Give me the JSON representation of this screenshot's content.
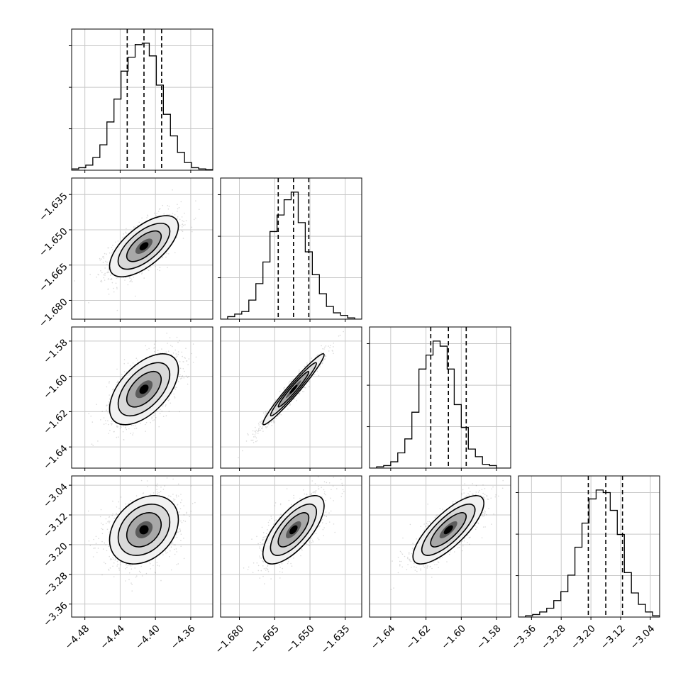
{
  "figure": {
    "type": "corner",
    "n_params": 4,
    "colors": {
      "hist": "#000000",
      "dashed": "#000000",
      "grid": "#c8c8c8",
      "scatter": "#555555",
      "contour": "#000000",
      "fill_dark": "#000000",
      "fill_light": "#bcbcbc"
    },
    "quantiles": [
      0.16,
      0.5,
      0.84
    ],
    "grid": true
  },
  "chart_data": {
    "type": "corner",
    "params": [
      {
        "range": [
          -4.495,
          -4.335
        ],
        "ticks": [
          -4.48,
          -4.44,
          -4.4,
          -4.36
        ],
        "tick_labels": [
          "−4.48",
          "−4.44",
          "−4.40",
          "−4.36"
        ],
        "quantiles": [
          -4.432,
          -4.413,
          -4.393
        ],
        "hist": [
          0.01,
          0.02,
          0.04,
          0.1,
          0.2,
          0.38,
          0.56,
          0.78,
          0.89,
          0.99,
          1.0,
          0.9,
          0.67,
          0.44,
          0.27,
          0.14,
          0.06,
          0.02,
          0.01,
          0.005
        ]
      },
      {
        "range": [
          -1.688,
          -1.628
        ],
        "ticks": [
          -1.68,
          -1.665,
          -1.65,
          -1.635
        ],
        "tick_labels": [
          "−1.680",
          "−1.665",
          "−1.650",
          "−1.635"
        ],
        "quantiles": [
          -1.6635,
          -1.657,
          -1.6505
        ],
        "hist": [
          0.0,
          0.02,
          0.04,
          0.06,
          0.15,
          0.28,
          0.45,
          0.69,
          0.82,
          0.94,
          1.0,
          0.76,
          0.53,
          0.35,
          0.2,
          0.1,
          0.05,
          0.03,
          0.01,
          0.0
        ]
      },
      {
        "range": [
          -1.652,
          -1.572
        ],
        "ticks": [
          -1.64,
          -1.62,
          -1.6,
          -1.58
        ],
        "tick_labels": [
          "−1.64",
          "−1.62",
          "−1.60",
          "−1.58"
        ],
        "quantiles": [
          -1.6173,
          -1.6073,
          -1.5972
        ],
        "hist": [
          0.0,
          0.01,
          0.02,
          0.05,
          0.12,
          0.23,
          0.44,
          0.78,
          0.89,
          1.0,
          0.96,
          0.78,
          0.5,
          0.32,
          0.15,
          0.09,
          0.03,
          0.02,
          0.0,
          0.0
        ]
      },
      {
        "range": [
          -3.395,
          -3.015
        ],
        "ticks": [
          -3.36,
          -3.28,
          -3.2,
          -3.12,
          -3.04
        ],
        "tick_labels": [
          "−3.36",
          "−3.28",
          "−3.20",
          "−3.12",
          "−3.04"
        ],
        "quantiles": [
          -3.207,
          -3.16,
          -3.115
        ],
        "hist": [
          0.0,
          0.01,
          0.02,
          0.04,
          0.07,
          0.13,
          0.2,
          0.33,
          0.55,
          0.74,
          0.93,
          1.0,
          0.98,
          0.84,
          0.65,
          0.35,
          0.19,
          0.1,
          0.04,
          0.01
        ]
      }
    ],
    "correlations": {
      "1-0": 0.65,
      "2-0": 0.55,
      "2-1": 0.97,
      "3-0": 0.3,
      "3-1": 0.7,
      "3-2": 0.78
    }
  }
}
